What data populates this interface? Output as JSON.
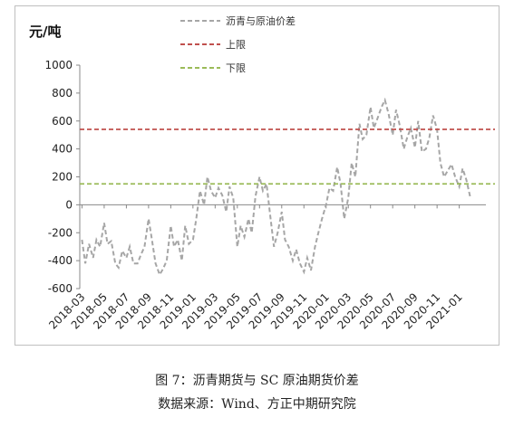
{
  "chart_data": {
    "type": "line",
    "ylabel": "元/吨",
    "ylim": [
      -600,
      1000
    ],
    "yticks": [
      1000,
      800,
      600,
      400,
      200,
      0,
      -200,
      -400,
      -600
    ],
    "xlim": [
      "2018-03",
      "2021-03"
    ],
    "xticks": [
      "2018-03",
      "2018-05",
      "2018-07",
      "2018-09",
      "2018-11",
      "2019-01",
      "2019-03",
      "2019-05",
      "2019-07",
      "2019-09",
      "2019-11",
      "2020-01",
      "2020-03",
      "2020-05",
      "2020-07",
      "2020-09",
      "2020-11",
      "2021-01"
    ],
    "legend_position": "top-center",
    "series": [
      {
        "name": "沥青与原油价差",
        "style": "dashed",
        "color": "#a6a6a6",
        "points": [
          [
            "2018-03-01",
            -250
          ],
          [
            "2018-03-10",
            -420
          ],
          [
            "2018-03-20",
            -280
          ],
          [
            "2018-04-01",
            -380
          ],
          [
            "2018-04-10",
            -250
          ],
          [
            "2018-04-20",
            -300
          ],
          [
            "2018-05-01",
            -130
          ],
          [
            "2018-05-10",
            -280
          ],
          [
            "2018-05-20",
            -260
          ],
          [
            "2018-06-01",
            -420
          ],
          [
            "2018-06-10",
            -450
          ],
          [
            "2018-06-20",
            -330
          ],
          [
            "2018-07-01",
            -380
          ],
          [
            "2018-07-10",
            -300
          ],
          [
            "2018-07-20",
            -420
          ],
          [
            "2018-08-01",
            -420
          ],
          [
            "2018-08-10",
            -360
          ],
          [
            "2018-08-20",
            -300
          ],
          [
            "2018-09-01",
            -100
          ],
          [
            "2018-09-10",
            -250
          ],
          [
            "2018-09-20",
            -420
          ],
          [
            "2018-10-01",
            -500
          ],
          [
            "2018-10-10",
            -460
          ],
          [
            "2018-10-20",
            -400
          ],
          [
            "2018-11-01",
            -150
          ],
          [
            "2018-11-10",
            -300
          ],
          [
            "2018-11-20",
            -250
          ],
          [
            "2018-12-01",
            -400
          ],
          [
            "2018-12-10",
            -150
          ],
          [
            "2018-12-20",
            -280
          ],
          [
            "2019-01-01",
            -250
          ],
          [
            "2019-01-10",
            -100
          ],
          [
            "2019-01-20",
            100
          ],
          [
            "2019-02-01",
            0
          ],
          [
            "2019-02-10",
            200
          ],
          [
            "2019-02-20",
            100
          ],
          [
            "2019-03-01",
            50
          ],
          [
            "2019-03-10",
            120
          ],
          [
            "2019-03-20",
            70
          ],
          [
            "2019-04-01",
            -50
          ],
          [
            "2019-04-10",
            130
          ],
          [
            "2019-04-20",
            50
          ],
          [
            "2019-05-01",
            -300
          ],
          [
            "2019-05-10",
            -150
          ],
          [
            "2019-05-20",
            -230
          ],
          [
            "2019-06-01",
            -100
          ],
          [
            "2019-06-10",
            -200
          ],
          [
            "2019-06-20",
            60
          ],
          [
            "2019-07-01",
            200
          ],
          [
            "2019-07-10",
            100
          ],
          [
            "2019-07-20",
            150
          ],
          [
            "2019-08-01",
            -100
          ],
          [
            "2019-08-10",
            -300
          ],
          [
            "2019-08-20",
            -200
          ],
          [
            "2019-09-01",
            -50
          ],
          [
            "2019-09-10",
            -250
          ],
          [
            "2019-09-20",
            -300
          ],
          [
            "2019-10-01",
            -400
          ],
          [
            "2019-10-10",
            -320
          ],
          [
            "2019-10-20",
            -420
          ],
          [
            "2019-11-01",
            -480
          ],
          [
            "2019-11-10",
            -380
          ],
          [
            "2019-11-20",
            -470
          ],
          [
            "2019-12-01",
            -300
          ],
          [
            "2019-12-10",
            -200
          ],
          [
            "2019-12-20",
            -100
          ],
          [
            "2020-01-01",
            0
          ],
          [
            "2020-01-10",
            120
          ],
          [
            "2020-01-20",
            100
          ],
          [
            "2020-02-01",
            270
          ],
          [
            "2020-02-10",
            150
          ],
          [
            "2020-02-20",
            -100
          ],
          [
            "2020-03-01",
            50
          ],
          [
            "2020-03-10",
            300
          ],
          [
            "2020-03-20",
            200
          ],
          [
            "2020-04-01",
            580
          ],
          [
            "2020-04-10",
            470
          ],
          [
            "2020-04-20",
            500
          ],
          [
            "2020-05-01",
            700
          ],
          [
            "2020-05-10",
            550
          ],
          [
            "2020-05-20",
            620
          ],
          [
            "2020-06-01",
            700
          ],
          [
            "2020-06-10",
            750
          ],
          [
            "2020-06-20",
            650
          ],
          [
            "2020-07-01",
            500
          ],
          [
            "2020-07-10",
            680
          ],
          [
            "2020-07-20",
            570
          ],
          [
            "2020-08-01",
            400
          ],
          [
            "2020-08-10",
            480
          ],
          [
            "2020-08-20",
            550
          ],
          [
            "2020-09-01",
            410
          ],
          [
            "2020-09-10",
            600
          ],
          [
            "2020-09-20",
            380
          ],
          [
            "2020-10-01",
            400
          ],
          [
            "2020-10-10",
            480
          ],
          [
            "2020-10-20",
            640
          ],
          [
            "2020-11-01",
            540
          ],
          [
            "2020-11-10",
            300
          ],
          [
            "2020-11-20",
            200
          ],
          [
            "2020-12-01",
            250
          ],
          [
            "2020-12-10",
            290
          ],
          [
            "2020-12-20",
            200
          ],
          [
            "2021-01-01",
            130
          ],
          [
            "2021-01-10",
            260
          ],
          [
            "2021-01-20",
            180
          ],
          [
            "2021-02-01",
            50
          ]
        ]
      },
      {
        "name": "上限",
        "style": "dashed",
        "color": "#c0504d",
        "values": [
          540
        ]
      },
      {
        "name": "下限",
        "style": "dashed",
        "color": "#9bbb59",
        "values": [
          150
        ]
      }
    ]
  },
  "caption": {
    "title": "图 7：沥青期货与 SC 原油期货价差",
    "source": "数据来源：Wind、方正中期研究院"
  }
}
